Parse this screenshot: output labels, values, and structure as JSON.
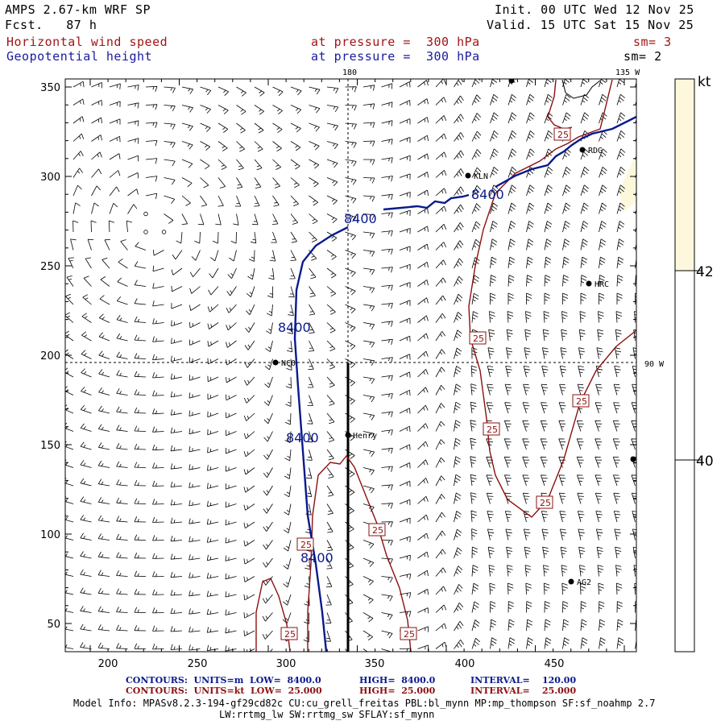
{
  "header": {
    "model": "AMPS 2.67-km WRF SP",
    "forecast": "Fcst.   87 h",
    "init": "Init. 00 UTC Wed 12 Nov 25",
    "valid": "Valid. 15 UTC Sat 15 Nov 25",
    "field1_name": "Horizontal wind speed",
    "field1_level": "at pressure =  300 hPa",
    "field1_smooth": "sm= 3",
    "field2_name": "Geopotential height",
    "field2_level": "at pressure =  300 hPa",
    "field2_smooth": "sm= 2"
  },
  "map": {
    "x_ticks": [
      "200",
      "250",
      "300",
      "350",
      "400",
      "450"
    ],
    "y_ticks": [
      "50",
      "100",
      "150",
      "200",
      "250",
      "300",
      "350"
    ],
    "lon_top_180": "180",
    "lon_top_135": "135 W",
    "lon_right_90": "90 W",
    "stations": [
      "KLN",
      "RDG",
      "HRC",
      "NCO",
      "Henry",
      "AG2"
    ],
    "height_label": "8400",
    "wind_label": "25"
  },
  "colorbar": {
    "unit": "kt",
    "ticks": [
      "42",
      "40"
    ],
    "fill_color": "#fdf8dc"
  },
  "footer": {
    "c1_a": "CONTOURS:  UNITS=m  LOW=  8400.0",
    "c1_b": "HIGH=  8400.0",
    "c1_c": "INTERVAL=    120.00",
    "c2_a": "CONTOURS:  UNITS=kt  LOW=  25.000",
    "c2_b": "HIGH=  25.000",
    "c2_c": "INTERVAL=    25.000",
    "info1": "Model Info: MPASv8.2.3-194-gf29cd82c CU:cu_grell_freitas PBL:bl_mynn MP:mp_thompson SF:sf_noahmp 2.7",
    "info2": "LW:rrtmg_lw SW:rrtmg_sw SFLAY:sf_mynn"
  },
  "colors": {
    "height_contour": "#0a1a8c",
    "wind_contour": "#8b1010",
    "header_red": "#a31515",
    "header_blue": "#1a1aa0"
  }
}
